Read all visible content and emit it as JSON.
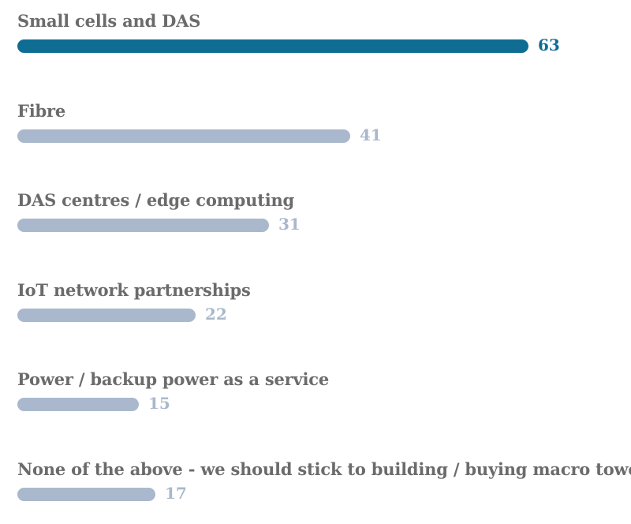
{
  "chart_data": {
    "type": "bar",
    "orientation": "horizontal",
    "categories": [
      "Small cells and DAS",
      "Fibre",
      "DAS centres / edge computing",
      "IoT network partnerships",
      "Power / backup power as a service",
      "None of the above - we should stick to building / buying macro towers"
    ],
    "values": [
      63,
      41,
      31,
      22,
      15,
      17
    ],
    "highlight_index": 0,
    "xlim": [
      0,
      63
    ],
    "grid": false,
    "legend": "none",
    "colors": {
      "highlight": "#0f6d94",
      "default": "#a9b8cc",
      "label_text": "#6b6b6b"
    }
  }
}
